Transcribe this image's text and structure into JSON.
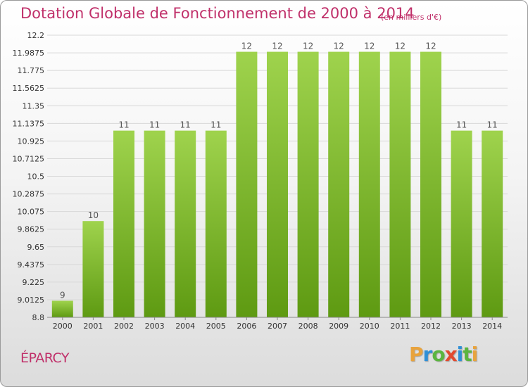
{
  "header": {
    "title": "Dotation Globale de Fonctionnement de 2000 à 2014",
    "unit": "(en milliers d'€)"
  },
  "footer": {
    "commune": "ÉPARCY",
    "logo_letters": [
      {
        "ch": "P",
        "color": "#e8a33d"
      },
      {
        "ch": "r",
        "color": "#2f8fd6"
      },
      {
        "ch": "o",
        "color": "#5bb53f"
      },
      {
        "ch": "x",
        "color": "#e24a2f"
      },
      {
        "ch": "i",
        "color": "#2f8fd6"
      },
      {
        "ch": "t",
        "color": "#5bb53f"
      },
      {
        "ch": "i",
        "color": "#e8a33d"
      }
    ]
  },
  "colors": {
    "title": "#c0306a",
    "bar_top": "#9fd34d",
    "bar_bottom": "#5e9a12",
    "grid": "#d8d8d8",
    "axis_text": "#333333",
    "label_text": "#555555"
  },
  "chart_data": {
    "type": "bar",
    "categories": [
      "2000",
      "2001",
      "2002",
      "2003",
      "2004",
      "2005",
      "2006",
      "2007",
      "2008",
      "2009",
      "2010",
      "2011",
      "2012",
      "2013",
      "2014"
    ],
    "values": [
      9,
      10,
      11,
      11,
      11,
      11,
      12,
      12,
      12,
      12,
      12,
      12,
      12,
      11,
      11
    ],
    "bar_values": [
      9.0,
      9.96,
      11.05,
      11.05,
      11.05,
      11.05,
      12.0,
      12.0,
      12.0,
      12.0,
      12.0,
      12.0,
      12.0,
      11.05,
      11.05
    ],
    "data_labels": [
      "9",
      "10",
      "11",
      "11",
      "11",
      "11",
      "12",
      "12",
      "12",
      "12",
      "12",
      "12",
      "12",
      "11",
      "11"
    ],
    "yticks": [
      "8.8",
      "9.0125",
      "9.225",
      "9.4375",
      "9.65",
      "9.8625",
      "10.075",
      "10.2875",
      "10.5",
      "10.7125",
      "10.925",
      "11.1375",
      "11.35",
      "11.5625",
      "11.775",
      "11.9875",
      "12.2"
    ],
    "ylim": [
      8.8,
      12.2
    ],
    "grid": true,
    "title": "Dotation Globale de Fonctionnement de 2000 à 2014",
    "xlabel": "",
    "ylabel": ""
  }
}
